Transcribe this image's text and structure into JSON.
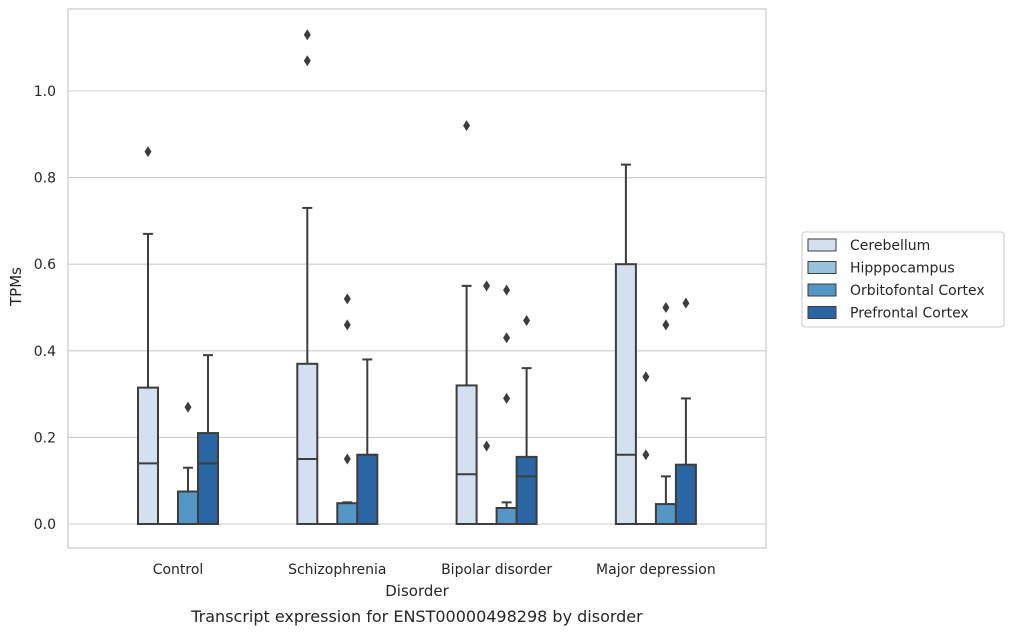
{
  "caption": "Transcript expression for ENST00000498298 by disorder",
  "chart_data": {
    "type": "box",
    "xlabel": "Disorder",
    "ylabel": "TPMs",
    "ylim": [
      -0.055,
      1.19
    ],
    "yticks": [
      0.0,
      0.2,
      0.4,
      0.6,
      0.8,
      1.0
    ],
    "ytick_labels": [
      "0.0",
      "0.2",
      "0.4",
      "0.6",
      "0.8",
      "1.0"
    ],
    "grid": "horizontal",
    "legend_position": "right",
    "categories": [
      "Control",
      "Schizophrenia",
      "Bipolar disorder",
      "Major depression"
    ],
    "series": [
      {
        "name": "Cerebellum",
        "color": "#d3e0f0",
        "boxes": [
          {
            "whislo": 0.0,
            "q1": 0.0,
            "med": 0.14,
            "q3": 0.315,
            "whishi": 0.67,
            "fliers": [
              0.86
            ]
          },
          {
            "whislo": 0.0,
            "q1": 0.0,
            "med": 0.15,
            "q3": 0.37,
            "whishi": 0.73,
            "fliers": [
              1.07,
              1.13
            ]
          },
          {
            "whislo": 0.0,
            "q1": 0.0,
            "med": 0.115,
            "q3": 0.32,
            "whishi": 0.55,
            "fliers": [
              0.92
            ]
          },
          {
            "whislo": 0.0,
            "q1": 0.0,
            "med": 0.16,
            "q3": 0.6,
            "whishi": 0.83,
            "fliers": []
          }
        ]
      },
      {
        "name": "Hipppocampus",
        "color": "#9ac2dd",
        "boxes": [
          {
            "whislo": 0.0,
            "q1": 0.0,
            "med": 0.0,
            "q3": 0.0,
            "whishi": 0.0,
            "fliers": []
          },
          {
            "whislo": 0.0,
            "q1": 0.0,
            "med": 0.0,
            "q3": 0.0,
            "whishi": 0.0,
            "fliers": []
          },
          {
            "whislo": 0.0,
            "q1": 0.0,
            "med": 0.0,
            "q3": 0.0,
            "whishi": 0.0,
            "fliers": [
              0.18,
              0.55
            ]
          },
          {
            "whislo": 0.0,
            "q1": 0.0,
            "med": 0.0,
            "q3": 0.0,
            "whishi": 0.0,
            "fliers": [
              0.16,
              0.34
            ]
          }
        ]
      },
      {
        "name": "Orbitofontal Cortex",
        "color": "#5497c6",
        "boxes": [
          {
            "whislo": 0.0,
            "q1": 0.0,
            "med": 0.0,
            "q3": 0.075,
            "whishi": 0.13,
            "fliers": [
              0.27
            ]
          },
          {
            "whislo": 0.0,
            "q1": 0.0,
            "med": 0.0,
            "q3": 0.048,
            "whishi": 0.05,
            "fliers": [
              0.15,
              0.46,
              0.52
            ]
          },
          {
            "whislo": 0.0,
            "q1": 0.0,
            "med": 0.0,
            "q3": 0.037,
            "whishi": 0.05,
            "fliers": [
              0.29,
              0.43,
              0.54
            ]
          },
          {
            "whislo": 0.0,
            "q1": 0.0,
            "med": 0.0,
            "q3": 0.046,
            "whishi": 0.11,
            "fliers": [
              0.46,
              0.5
            ]
          }
        ]
      },
      {
        "name": "Prefrontal Cortex",
        "color": "#2a66a3",
        "boxes": [
          {
            "whislo": 0.0,
            "q1": 0.0,
            "med": 0.14,
            "q3": 0.21,
            "whishi": 0.39,
            "fliers": []
          },
          {
            "whislo": 0.0,
            "q1": 0.0,
            "med": 0.0,
            "q3": 0.16,
            "whishi": 0.38,
            "fliers": []
          },
          {
            "whislo": 0.0,
            "q1": 0.0,
            "med": 0.11,
            "q3": 0.155,
            "whishi": 0.36,
            "fliers": [
              0.47
            ]
          },
          {
            "whislo": 0.0,
            "q1": 0.0,
            "med": 0.0,
            "q3": 0.137,
            "whishi": 0.29,
            "fliers": [
              0.51
            ]
          }
        ]
      }
    ]
  }
}
